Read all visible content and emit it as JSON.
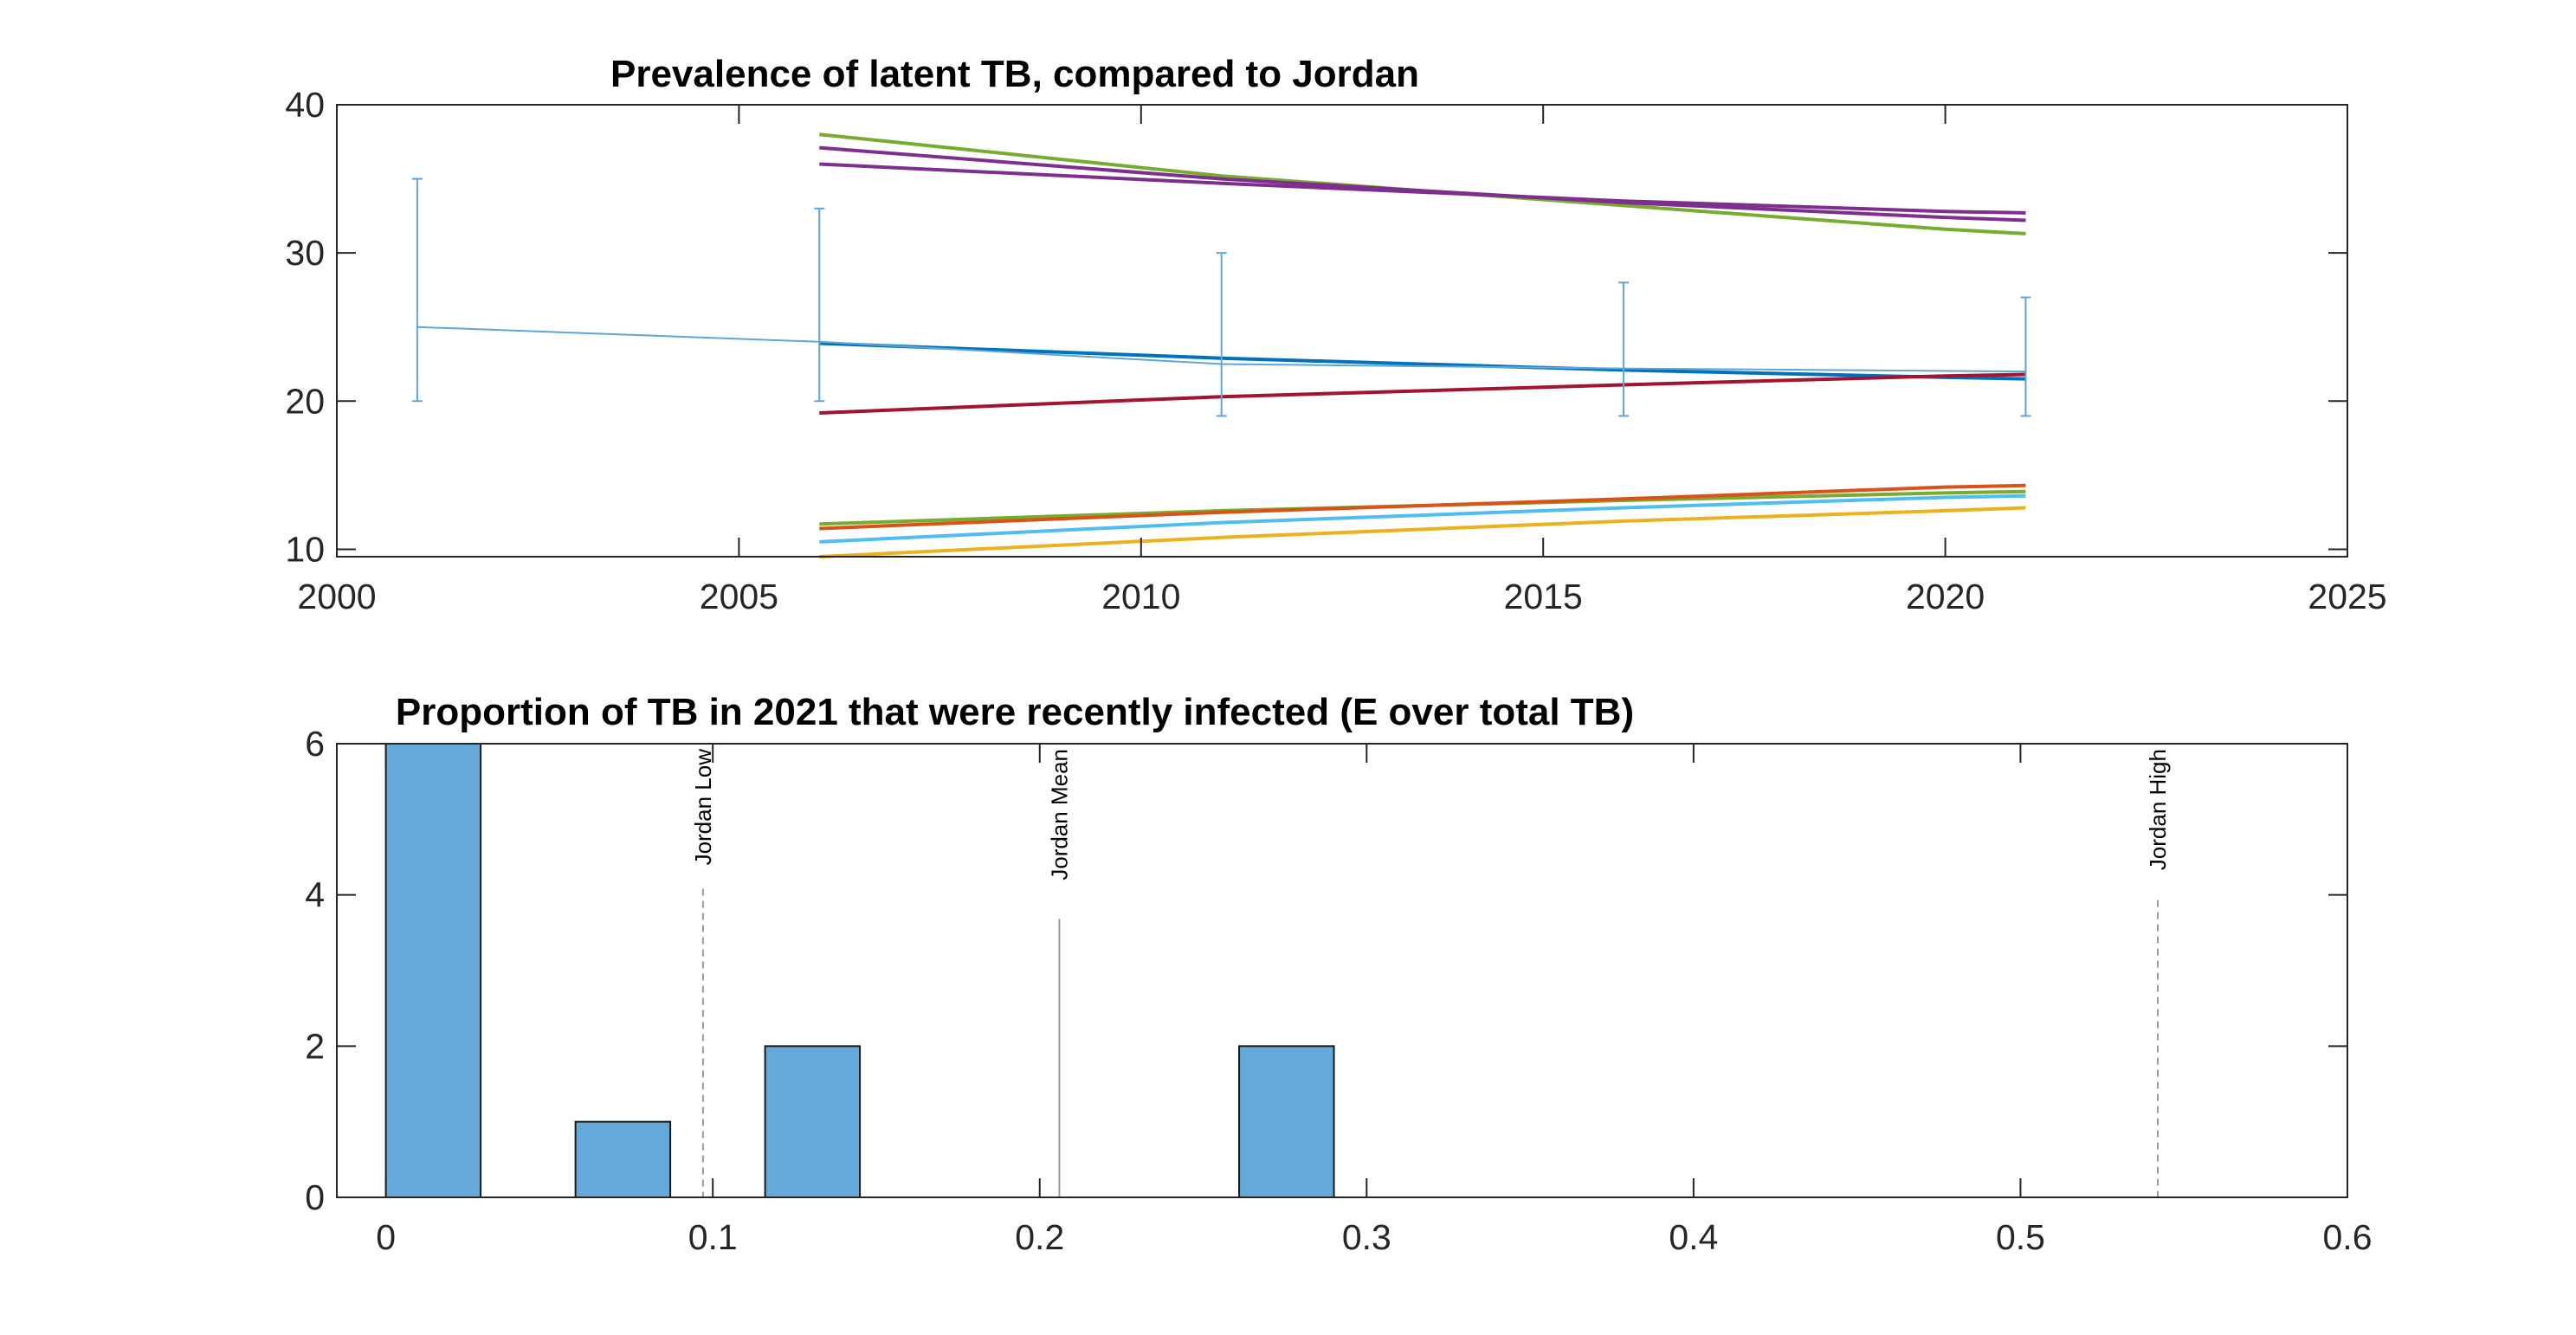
{
  "chart_data": [
    {
      "type": "line",
      "title": "Prevalence of latent TB, compared to Jordan",
      "xlabel": "",
      "ylabel": "",
      "xlim": [
        2000,
        2025
      ],
      "ylim": [
        9.5,
        40
      ],
      "xticks": [
        2000,
        2005,
        2010,
        2015,
        2020,
        2025
      ],
      "yticks": [
        10,
        20,
        30,
        40
      ],
      "grid": false,
      "series": [
        {
          "color": "#77AC30",
          "x": [
            2006,
            2011,
            2016,
            2020,
            2021
          ],
          "y": [
            38.0,
            35.2,
            33.2,
            31.6,
            31.3
          ]
        },
        {
          "color": "#7E2F8E",
          "x": [
            2006,
            2011,
            2016,
            2020,
            2021
          ],
          "y": [
            37.1,
            35.0,
            33.4,
            32.4,
            32.2
          ]
        },
        {
          "color": "#7E2F8E",
          "x": [
            2006,
            2011,
            2016,
            2020,
            2021
          ],
          "y": [
            36.0,
            34.7,
            33.5,
            32.8,
            32.7
          ]
        },
        {
          "color": "#0072BD",
          "x": [
            2006,
            2011,
            2016,
            2020,
            2021
          ],
          "y": [
            23.9,
            22.9,
            22.1,
            21.6,
            21.5
          ]
        },
        {
          "color": "#A2142F",
          "x": [
            2006,
            2011,
            2016,
            2020,
            2021
          ],
          "y": [
            19.2,
            20.3,
            21.1,
            21.7,
            21.8
          ]
        },
        {
          "color": "#77AC30",
          "x": [
            2006,
            2011,
            2016,
            2020,
            2021
          ],
          "y": [
            11.7,
            12.6,
            13.3,
            13.8,
            13.9
          ]
        },
        {
          "color": "#D95319",
          "x": [
            2006,
            2011,
            2016,
            2020,
            2021
          ],
          "y": [
            11.4,
            12.5,
            13.4,
            14.2,
            14.3
          ]
        },
        {
          "color": "#4DBEEE",
          "x": [
            2006,
            2011,
            2016,
            2020,
            2021
          ],
          "y": [
            10.5,
            11.8,
            12.8,
            13.5,
            13.6
          ]
        },
        {
          "color": "#EDB120",
          "x": [
            2006,
            2011,
            2016,
            2020,
            2021
          ],
          "y": [
            9.5,
            10.8,
            11.9,
            12.6,
            12.8
          ]
        }
      ],
      "errorbar": {
        "color": "#5DA5DA",
        "x": [
          2001,
          2006,
          2011,
          2016,
          2021
        ],
        "y": [
          25,
          24,
          22.5,
          22.2,
          22
        ],
        "lower": [
          20,
          20,
          19,
          19,
          19
        ],
        "upper": [
          35,
          33,
          30,
          28,
          27
        ]
      }
    },
    {
      "type": "bar",
      "title": "Proportion of TB in 2021 that were recently infected (E over total TB)",
      "xlabel": "",
      "ylabel": "",
      "xlim": [
        -0.015,
        0.6
      ],
      "ylim": [
        0,
        6
      ],
      "xticks": [
        "0",
        "0.1",
        "0.2",
        "0.3",
        "0.4",
        "0.5",
        "0.6"
      ],
      "yticks": [
        "0",
        "2",
        "4",
        "6"
      ],
      "bin_width": 0.029,
      "bar_color": "#64A9D8",
      "bars": [
        {
          "left": 0.0,
          "count": 6
        },
        {
          "left": 0.058,
          "count": 1
        },
        {
          "left": 0.116,
          "count": 2
        },
        {
          "left": 0.261,
          "count": 2
        }
      ],
      "reference_lines": [
        {
          "label": "Jordan Low",
          "x": 0.097,
          "style": "dashed",
          "label_top": 6,
          "label_bottom": 4.15
        },
        {
          "label": "Jordan Mean",
          "x": 0.206,
          "style": "solid",
          "label_top": 6,
          "label_bottom": 3.75
        },
        {
          "label": "Jordan High",
          "x": 0.542,
          "style": "dashed",
          "label_top": 6,
          "label_bottom": 4.0
        }
      ]
    }
  ]
}
